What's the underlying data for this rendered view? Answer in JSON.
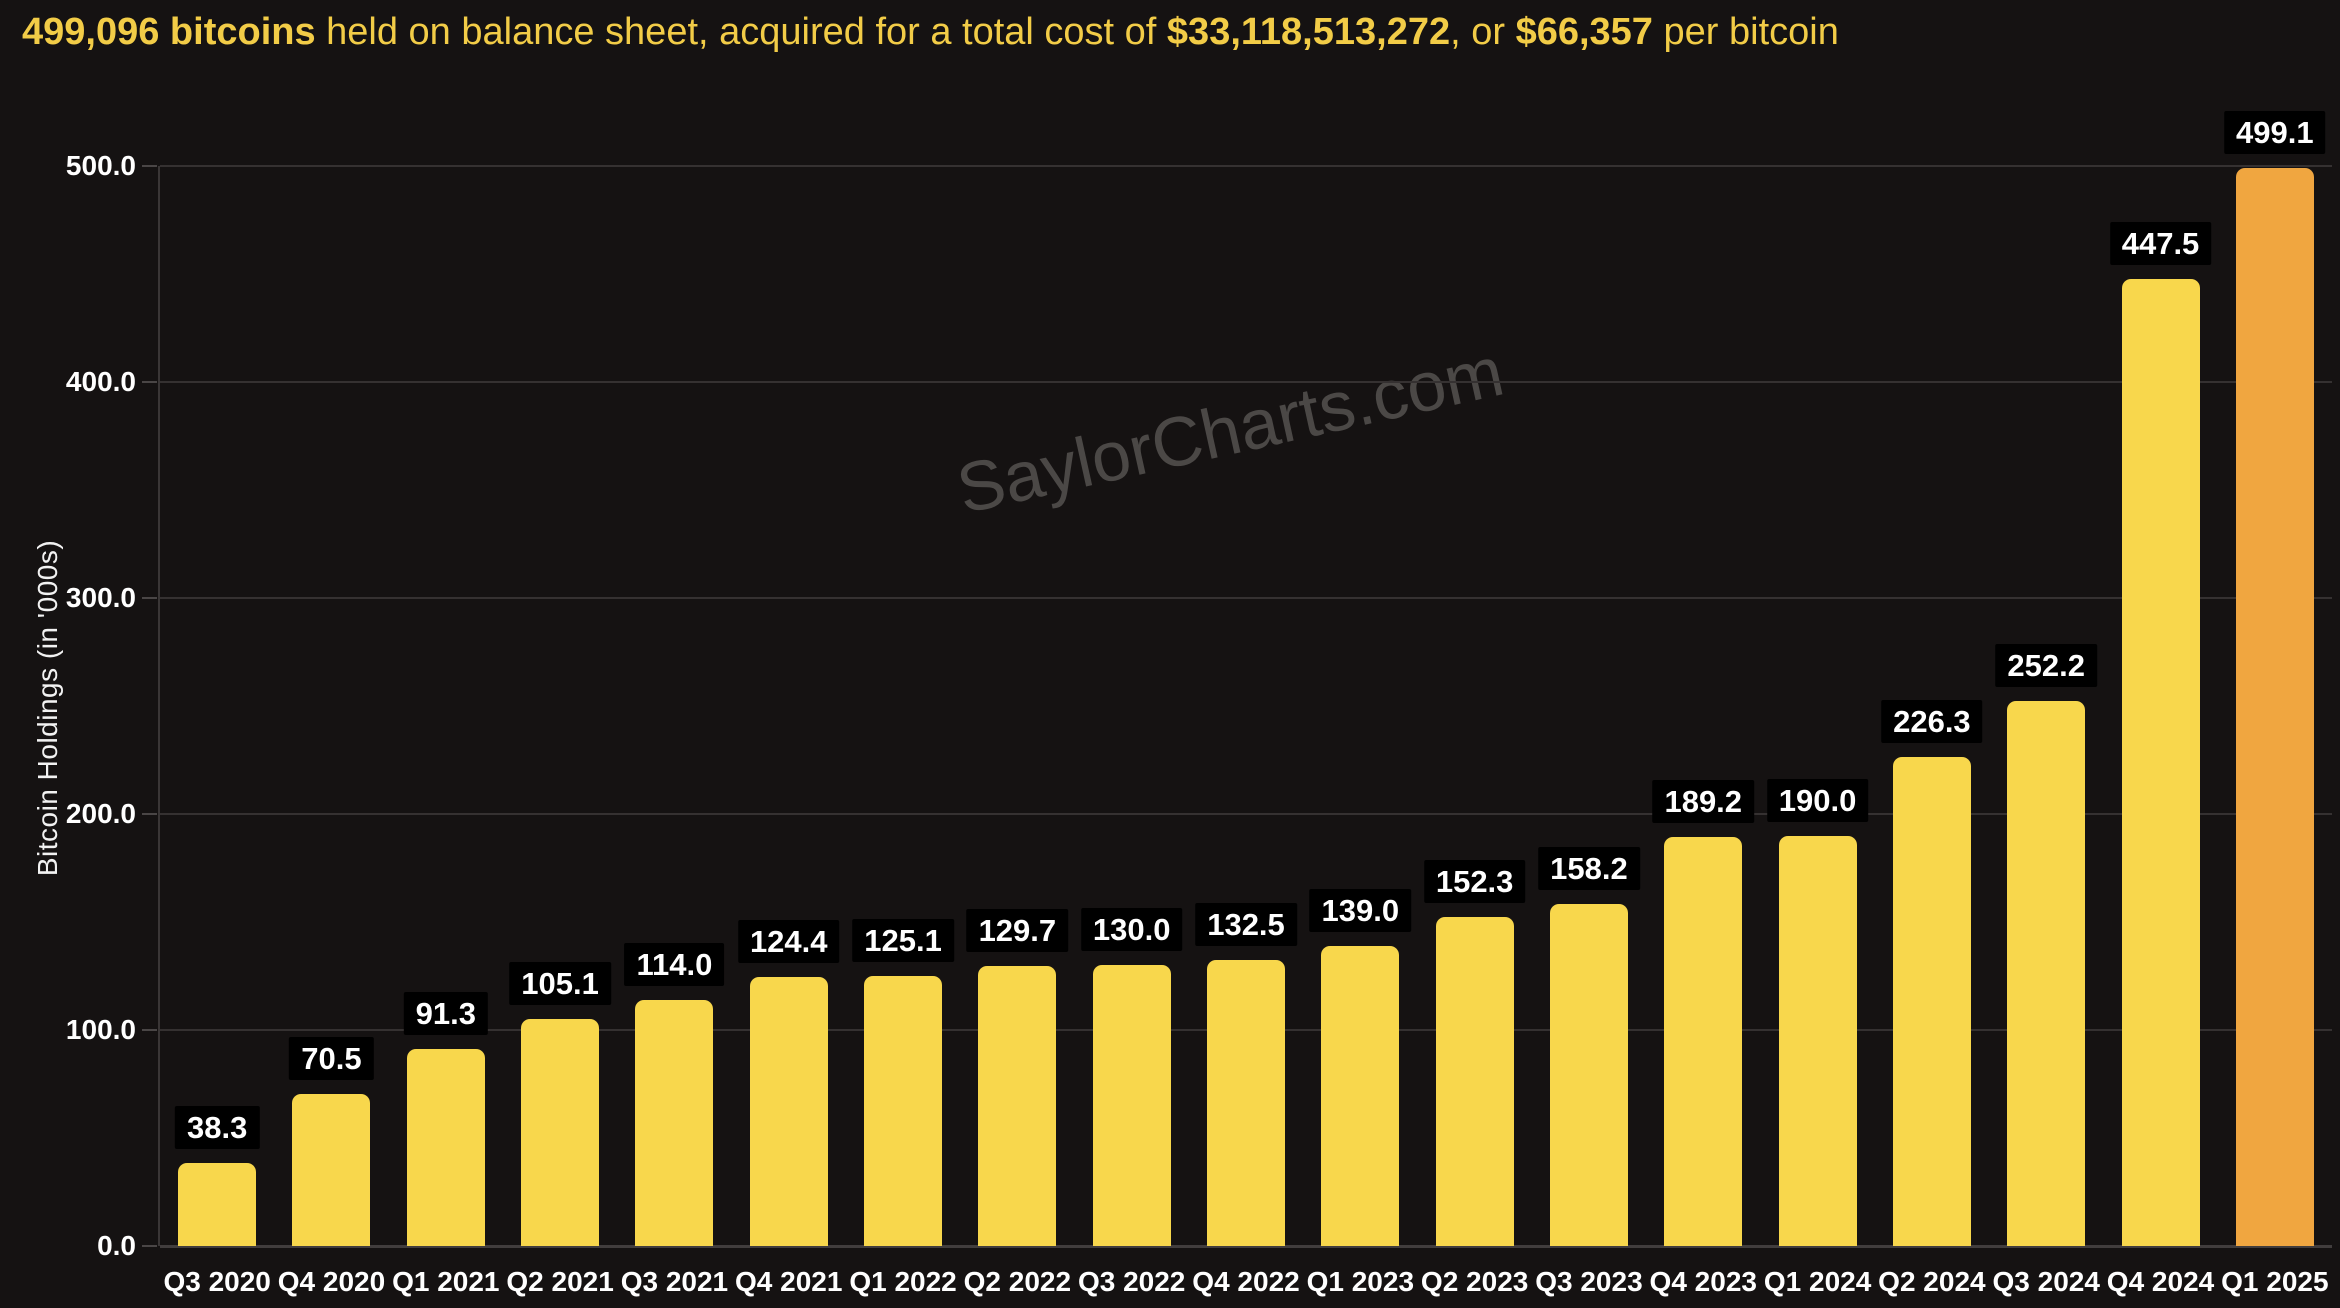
{
  "page": {
    "background": "#151212"
  },
  "headline": {
    "color": "#F2CC47",
    "parts": [
      {
        "text": "499,096 bitcoins",
        "bold": true
      },
      {
        "text": " held on balance sheet, acquired for a total cost of ",
        "bold": false
      },
      {
        "text": "$33,118,513,272",
        "bold": true
      },
      {
        "text": ", or ",
        "bold": false
      },
      {
        "text": "$66,357",
        "bold": true
      },
      {
        "text": " per bitcoin",
        "bold": false
      }
    ]
  },
  "watermark": {
    "text": "SaylorCharts.com",
    "color": "#4B4846"
  },
  "chart_data": {
    "type": "bar",
    "title": "499,096 bitcoins held on balance sheet, acquired for a total cost of $33,118,513,272, or $66,357 per bitcoin",
    "xlabel": "",
    "ylabel": "Bitcoin Holdings (in '000s)",
    "ylim": [
      0,
      500
    ],
    "yticks": [
      0,
      100,
      200,
      300,
      400,
      500
    ],
    "ytick_labels": [
      "0.0",
      "100.0",
      "200.0",
      "300.0",
      "400.0",
      "500.0"
    ],
    "grid": true,
    "legend_position": "none",
    "categories": [
      "Q3 2020",
      "Q4 2020",
      "Q1 2021",
      "Q2 2021",
      "Q3 2021",
      "Q4 2021",
      "Q1 2022",
      "Q2 2022",
      "Q3 2022",
      "Q4 2022",
      "Q1 2023",
      "Q2 2023",
      "Q3 2023",
      "Q4 2023",
      "Q1 2024",
      "Q2 2024",
      "Q3 2024",
      "Q4 2024",
      "Q1 2025"
    ],
    "values": [
      38.3,
      70.5,
      91.3,
      105.1,
      114.0,
      124.4,
      125.1,
      129.7,
      130.0,
      132.5,
      139.0,
      152.3,
      158.2,
      189.2,
      190.0,
      226.3,
      252.2,
      447.5,
      499.1
    ],
    "value_labels": [
      "38.3",
      "70.5",
      "91.3",
      "105.1",
      "114.0",
      "124.4",
      "125.1",
      "129.7",
      "130.0",
      "132.5",
      "139.0",
      "152.3",
      "158.2",
      "189.2",
      "190.0",
      "226.3",
      "252.2",
      "447.5",
      "499.1"
    ],
    "bar_color": "#F8D74C",
    "last_bar_color": "#F0A640",
    "value_label_bg": "#000000",
    "value_label_color": "#FFFFFF"
  }
}
